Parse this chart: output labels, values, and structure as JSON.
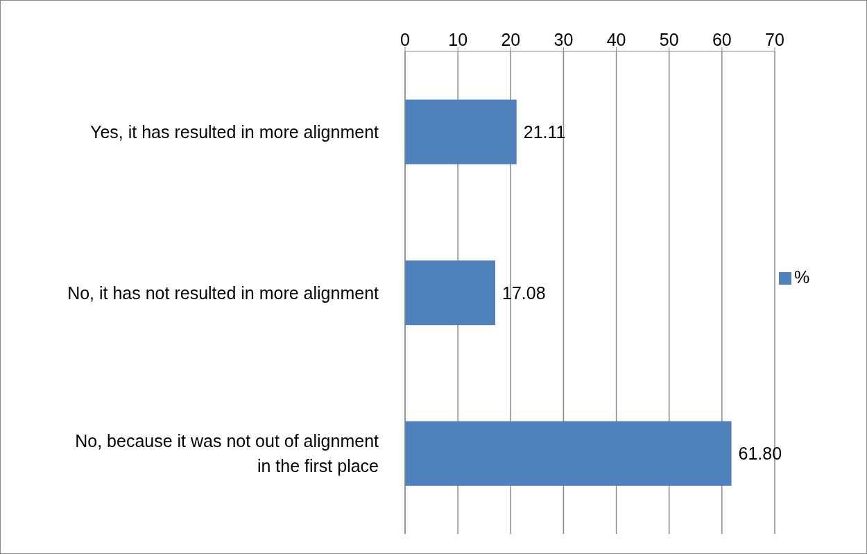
{
  "chart_data": {
    "type": "bar",
    "orientation": "horizontal",
    "categories": [
      "Yes, it has resulted in more alignment",
      "No, it has not resulted in more alignment",
      "No, because it was not out of alignment in the first place"
    ],
    "series": [
      {
        "name": "%",
        "color": "#4f81bd",
        "values": [
          21.11,
          17.08,
          61.8
        ],
        "value_labels": [
          "21.11",
          "17.08",
          "61.80"
        ]
      }
    ],
    "xlim": [
      0,
      70
    ],
    "xticks": [
      0,
      10,
      20,
      30,
      40,
      50,
      60,
      70
    ],
    "grid": "x",
    "legend": "right"
  }
}
